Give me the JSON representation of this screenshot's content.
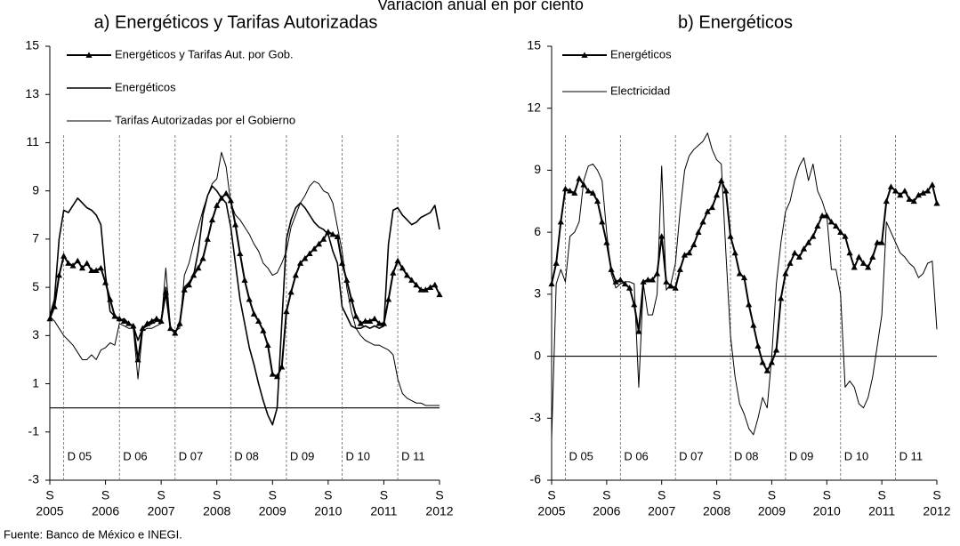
{
  "page_title": "Variación anual en por ciento",
  "source": "Fuente: Banco de México e INEGI.",
  "chart_data": [
    {
      "type": "line",
      "title": "a) Energéticos y Tarifas Autorizadas",
      "ylim": [
        -3,
        15
      ],
      "yticks": [
        -3,
        -1,
        1,
        3,
        5,
        7,
        9,
        11,
        13,
        15
      ],
      "categories": [
        "S",
        null,
        null,
        null,
        null,
        null,
        null,
        null,
        null,
        null,
        null,
        null,
        "S",
        null,
        null,
        null,
        null,
        null,
        null,
        null,
        null,
        null,
        null,
        null,
        "S",
        null,
        null,
        null,
        null,
        null,
        null,
        null,
        null,
        null,
        null,
        null,
        "S",
        null,
        null,
        null,
        null,
        null,
        null,
        null,
        null,
        null,
        null,
        null,
        "S",
        null,
        null,
        null,
        null,
        null,
        null,
        null,
        null,
        null,
        null,
        null,
        "S",
        null,
        null,
        null,
        null,
        null,
        null,
        null,
        null,
        null,
        null,
        null,
        "S",
        null,
        null,
        null,
        null,
        null,
        null,
        null,
        null,
        null,
        null,
        null,
        "S"
      ],
      "years": [
        "2005",
        "2006",
        "2007",
        "2008",
        "2009",
        "2010",
        "2011",
        "2012"
      ],
      "periods": [
        "D 05",
        "D 06",
        "D 07",
        "D 08",
        "D 09",
        "D 10",
        "D 11"
      ],
      "series": [
        {
          "name": "Energéticos y Tarifas Aut. por Gob.",
          "color": "#000000",
          "marker": "triangle",
          "width": 2,
          "values": [
            3.7,
            4.2,
            5.5,
            6.3,
            6.0,
            5.9,
            6.1,
            5.8,
            6.0,
            5.7,
            5.7,
            5.8,
            5.2,
            4.5,
            3.8,
            3.7,
            3.6,
            3.5,
            3.4,
            2.0,
            3.3,
            3.5,
            3.6,
            3.7,
            3.6,
            4.8,
            3.3,
            3.1,
            3.5,
            4.9,
            5.1,
            5.5,
            5.8,
            6.2,
            7.0,
            7.8,
            8.4,
            8.7,
            8.9,
            8.6,
            7.6,
            6.4,
            5.3,
            4.5,
            3.9,
            3.6,
            3.2,
            2.6,
            1.4,
            1.3,
            1.7,
            4.0,
            4.8,
            5.5,
            6.0,
            6.2,
            6.4,
            6.6,
            6.8,
            7.0,
            7.3,
            7.2,
            7.1,
            6.0,
            5.3,
            4.5,
            3.8,
            3.5,
            3.6,
            3.6,
            3.7,
            3.5,
            3.5,
            4.5,
            5.6,
            6.1,
            5.8,
            5.5,
            5.3,
            5.1,
            4.9,
            4.9,
            5.0,
            5.1,
            4.7
          ]
        },
        {
          "name": "Energéticos",
          "color": "#000000",
          "marker": "none",
          "width": 1.6,
          "values": [
            3.8,
            4.5,
            7.0,
            8.2,
            8.1,
            8.4,
            8.7,
            8.5,
            8.3,
            8.2,
            8.0,
            7.6,
            5.5,
            4.0,
            3.8,
            3.6,
            3.7,
            3.5,
            3.4,
            2.8,
            3.3,
            3.4,
            3.5,
            3.6,
            3.6,
            5.0,
            3.3,
            3.1,
            3.5,
            5.0,
            5.2,
            5.5,
            6.5,
            8.0,
            8.8,
            9.2,
            9.0,
            8.7,
            8.5,
            7.5,
            6.0,
            4.5,
            3.5,
            2.5,
            1.8,
            1.0,
            0.3,
            -0.3,
            -0.7,
            0.0,
            3.5,
            7.0,
            7.8,
            8.3,
            8.5,
            8.3,
            8.0,
            7.7,
            7.5,
            7.4,
            7.2,
            6.5,
            6.0,
            4.2,
            3.8,
            3.4,
            3.3,
            3.3,
            3.4,
            3.3,
            3.4,
            3.3,
            3.4,
            6.8,
            8.2,
            8.3,
            8.0,
            7.8,
            7.6,
            7.7,
            7.9,
            8.0,
            8.1,
            8.4,
            7.4
          ]
        },
        {
          "name": "Tarifas Autorizadas por el Gobierno",
          "color": "#000000",
          "marker": "none",
          "width": 1,
          "values": [
            3.8,
            3.6,
            3.3,
            3.0,
            2.8,
            2.6,
            2.3,
            2.0,
            2.0,
            2.2,
            2.0,
            2.4,
            2.5,
            2.7,
            2.6,
            3.5,
            3.4,
            3.3,
            3.3,
            1.2,
            3.2,
            3.3,
            3.3,
            3.4,
            3.5,
            5.8,
            3.3,
            3.2,
            3.3,
            5.5,
            6.0,
            6.8,
            7.5,
            8.2,
            8.8,
            9.3,
            9.5,
            10.6,
            10.0,
            8.5,
            8.0,
            7.8,
            7.5,
            7.2,
            6.8,
            6.5,
            6.0,
            5.8,
            5.5,
            5.6,
            6.0,
            6.5,
            7.5,
            8.0,
            8.5,
            8.8,
            9.2,
            9.4,
            9.3,
            9.0,
            8.9,
            8.5,
            7.5,
            6.5,
            5.0,
            4.0,
            3.3,
            3.0,
            2.8,
            2.7,
            2.6,
            2.6,
            2.5,
            2.4,
            2.2,
            1.2,
            0.6,
            0.4,
            0.3,
            0.2,
            0.2,
            0.1,
            0.1,
            0.1,
            0.1
          ]
        }
      ]
    },
    {
      "type": "line",
      "title": "b) Energéticos",
      "ylim": [
        -6,
        15
      ],
      "yticks": [
        -6,
        -3,
        0,
        3,
        6,
        9,
        12,
        15
      ],
      "categories": [
        "S",
        null,
        null,
        null,
        null,
        null,
        null,
        null,
        null,
        null,
        null,
        null,
        "S",
        null,
        null,
        null,
        null,
        null,
        null,
        null,
        null,
        null,
        null,
        null,
        "S",
        null,
        null,
        null,
        null,
        null,
        null,
        null,
        null,
        null,
        null,
        null,
        "S",
        null,
        null,
        null,
        null,
        null,
        null,
        null,
        null,
        null,
        null,
        null,
        "S",
        null,
        null,
        null,
        null,
        null,
        null,
        null,
        null,
        null,
        null,
        null,
        "S",
        null,
        null,
        null,
        null,
        null,
        null,
        null,
        null,
        null,
        null,
        null,
        "S",
        null,
        null,
        null,
        null,
        null,
        null,
        null,
        null,
        null,
        null,
        null,
        "S"
      ],
      "years": [
        "2005",
        "2006",
        "2007",
        "2008",
        "2009",
        "2010",
        "2011",
        "2012"
      ],
      "periods": [
        "D 05",
        "D 06",
        "D 07",
        "D 08",
        "D 09",
        "D 10",
        "D 11"
      ],
      "series": [
        {
          "name": "Energéticos",
          "color": "#000000",
          "marker": "triangle",
          "width": 2,
          "values": [
            3.5,
            4.5,
            6.5,
            8.1,
            8.0,
            7.9,
            8.6,
            8.3,
            8.0,
            7.9,
            7.5,
            6.5,
            5.5,
            4.2,
            3.6,
            3.7,
            3.5,
            3.3,
            2.5,
            1.2,
            3.6,
            3.7,
            3.7,
            4.0,
            5.8,
            3.6,
            3.4,
            3.3,
            4.2,
            4.9,
            5.0,
            5.4,
            6.0,
            6.5,
            7.0,
            7.2,
            7.8,
            8.5,
            8.0,
            5.8,
            5.0,
            4.0,
            3.8,
            2.5,
            1.5,
            0.5,
            -0.3,
            -0.7,
            -0.3,
            0.3,
            2.8,
            4.0,
            4.5,
            5.0,
            4.8,
            5.2,
            5.5,
            5.8,
            6.3,
            6.8,
            6.8,
            6.5,
            6.3,
            6.0,
            5.8,
            5.0,
            4.3,
            4.8,
            4.5,
            4.3,
            4.8,
            5.5,
            5.5,
            7.5,
            8.2,
            8.0,
            7.8,
            8.0,
            7.6,
            7.5,
            7.8,
            7.9,
            8.0,
            8.3,
            7.4
          ]
        },
        {
          "name": "Electricidad",
          "color": "#000000",
          "marker": "none",
          "width": 1,
          "values": [
            -4.0,
            3.5,
            4.2,
            3.6,
            5.8,
            6.0,
            6.5,
            8.5,
            9.2,
            9.3,
            9.0,
            8.5,
            6.0,
            4.0,
            3.3,
            3.5,
            3.6,
            3.6,
            3.5,
            -1.5,
            3.5,
            2.0,
            2.0,
            3.0,
            9.2,
            3.2,
            3.5,
            4.5,
            7.0,
            9.0,
            9.7,
            10.0,
            10.2,
            10.4,
            10.8,
            10.0,
            9.5,
            9.3,
            5.0,
            1.0,
            -1.0,
            -2.3,
            -2.8,
            -3.5,
            -3.8,
            -3.0,
            -2.0,
            -2.5,
            0.0,
            3.5,
            5.5,
            7.0,
            7.5,
            8.5,
            9.2,
            9.6,
            8.5,
            9.3,
            8.0,
            7.5,
            6.8,
            4.2,
            4.2,
            3.0,
            -1.5,
            -1.2,
            -1.5,
            -2.3,
            -2.5,
            -2.0,
            -1.0,
            0.5,
            2.0,
            6.5,
            6.0,
            5.5,
            5.0,
            4.8,
            4.5,
            4.3,
            3.8,
            4.0,
            4.5,
            4.6,
            1.3
          ]
        }
      ]
    }
  ]
}
